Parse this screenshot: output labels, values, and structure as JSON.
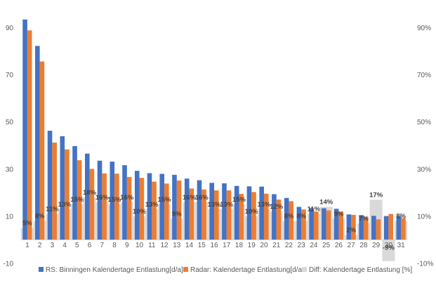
{
  "chart_data": {
    "type": "bar",
    "categories": [
      "1",
      "2",
      "3",
      "4",
      "5",
      "6",
      "7",
      "8",
      "9",
      "10",
      "11",
      "12",
      "13",
      "14",
      "15",
      "16",
      "17",
      "18",
      "19",
      "20",
      "21",
      "22",
      "23",
      "24",
      "25",
      "26",
      "27",
      "28",
      "29",
      "30",
      "31"
    ],
    "series": [
      {
        "name": "RS: Binningen Kalendertage Entlastung[d/a]",
        "color": "#4472C4",
        "axis": "left",
        "values": [
          93.5,
          82.3,
          46.3,
          44.0,
          39.8,
          36.6,
          33.6,
          33.2,
          31.7,
          29.3,
          28.3,
          28.0,
          27.6,
          26.0,
          25.3,
          24.2,
          24.0,
          22.9,
          22.7,
          22.6,
          19.4,
          17.8,
          14.0,
          13.5,
          13.4,
          13.2,
          10.8,
          10.5,
          10.2,
          10.1,
          10.0
        ]
      },
      {
        "name": "Radar: Kalendertage Entlastung[d/a",
        "color": "#ED7D31",
        "axis": "left",
        "values": [
          88.9,
          75.7,
          41.3,
          38.4,
          33.8,
          30.1,
          28.2,
          28.1,
          26.7,
          26.3,
          24.7,
          23.9,
          25.2,
          21.8,
          21.4,
          21.0,
          21.0,
          19.5,
          20.3,
          19.6,
          17.1,
          16.4,
          12.9,
          12.0,
          12.5,
          12.0,
          10.6,
          9.8,
          8.7,
          11.0,
          9.2
        ]
      },
      {
        "name": "Diff: Kalendertage Entlastung [%]",
        "color": "#D9D9D9",
        "axis": "right",
        "values": [
          5,
          8,
          11,
          13,
          15,
          18,
          16,
          15,
          16,
          10,
          13,
          15,
          9,
          16,
          16,
          13,
          13,
          15,
          10,
          13,
          12,
          8,
          8,
          11,
          14,
          9,
          2,
          7,
          17,
          -9,
          8
        ]
      }
    ],
    "data_labels": [
      "5%",
      "8%",
      "11%",
      "13%",
      "15%",
      "18%",
      "16%",
      "15%",
      "16%",
      "10%",
      "13%",
      "15%",
      "9%",
      "16%",
      "16%",
      "13%",
      "13%",
      "15%",
      "10%",
      "13%",
      "12%",
      "8%",
      "8%",
      "11%",
      "14%",
      "9%",
      "2%",
      "7%",
      "17%",
      "-9%",
      "8%"
    ],
    "left_axis": {
      "ylim": [
        -10,
        100
      ],
      "ticks": [
        "90",
        "70",
        "50",
        "30",
        "10",
        "-10"
      ]
    },
    "right_axis": {
      "ylim": [
        -10,
        100
      ],
      "ticks": [
        "90%",
        "70%",
        "50%",
        "30%",
        "10%",
        "-10%"
      ]
    },
    "title": "",
    "xlabel": "",
    "ylabel": "",
    "grid": false,
    "legend_position": "bottom"
  }
}
